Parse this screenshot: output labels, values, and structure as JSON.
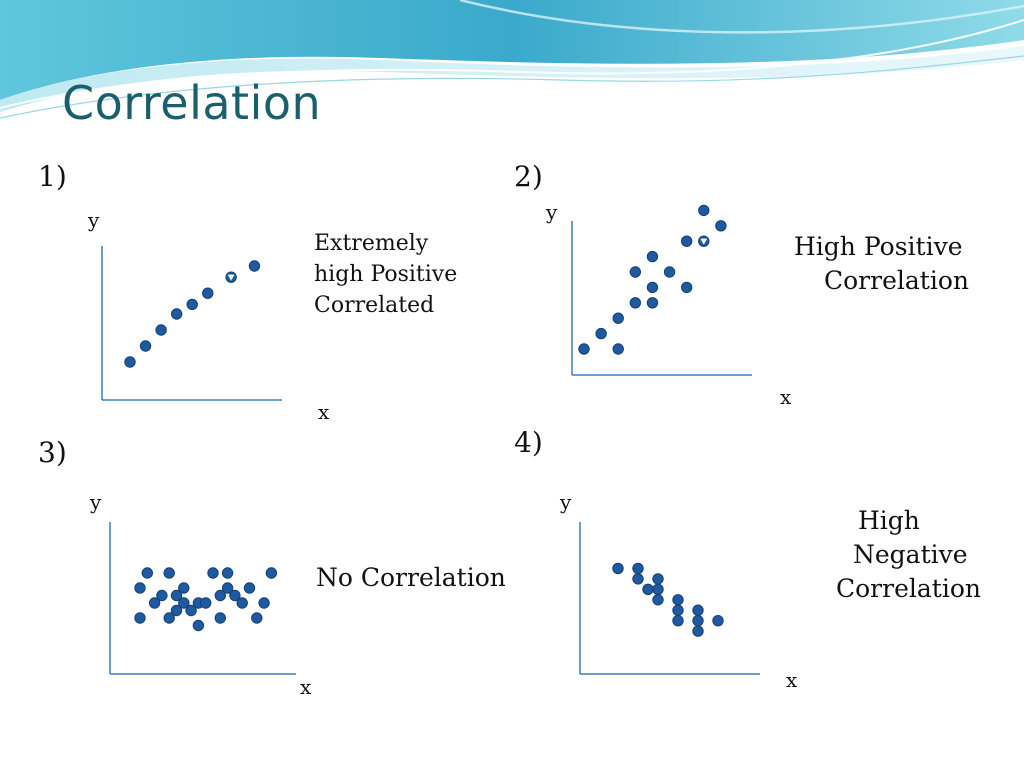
{
  "slide": {
    "title": "Correlation",
    "colors": {
      "title": "#1b5e6e",
      "dot": "#1f5aa0",
      "dot_dark": "#143f77",
      "axis": "#3d7db8"
    }
  },
  "panels": [
    {
      "number": "1)",
      "y_label": "y",
      "x_label": "x",
      "caption_lines": [
        "Extremely",
        "high Positive",
        "Correlated"
      ],
      "chart_data": {
        "type": "scatter",
        "title": "",
        "xlabel": "x",
        "ylabel": "y",
        "points": [
          [
            1,
            1
          ],
          [
            2,
            2
          ],
          [
            3,
            3
          ],
          [
            4,
            4
          ],
          [
            5,
            4.6
          ],
          [
            6,
            5.3
          ],
          [
            7.5,
            6.3
          ],
          [
            9,
            7
          ]
        ],
        "marker_points": [
          [
            7.5,
            6.3
          ]
        ]
      }
    },
    {
      "number": "2)",
      "y_label": "y",
      "x_label": "x",
      "caption_lines": [
        "High Positive",
        "  Correlation"
      ],
      "chart_data": {
        "type": "scatter",
        "title": "",
        "xlabel": "x",
        "ylabel": "y",
        "points": [
          [
            1,
            1
          ],
          [
            2,
            2
          ],
          [
            3,
            1
          ],
          [
            3,
            3
          ],
          [
            4,
            4
          ],
          [
            4,
            6
          ],
          [
            5,
            4
          ],
          [
            5,
            5
          ],
          [
            5,
            7
          ],
          [
            6,
            6
          ],
          [
            7,
            5
          ],
          [
            7,
            8
          ],
          [
            8,
            10
          ],
          [
            9,
            9
          ],
          [
            8,
            8
          ]
        ],
        "marker_points": [
          [
            8,
            8
          ]
        ]
      }
    },
    {
      "number": "3)",
      "y_label": "y",
      "x_label": "x",
      "caption_lines": [
        "No Correlation"
      ],
      "chart_data": {
        "type": "scatter",
        "title": "",
        "xlabel": "x",
        "ylabel": "y",
        "points": [
          [
            1,
            1
          ],
          [
            1,
            3
          ],
          [
            1.5,
            4
          ],
          [
            2,
            2
          ],
          [
            2.5,
            2.5
          ],
          [
            3,
            1
          ],
          [
            3,
            4
          ],
          [
            3.5,
            2.5
          ],
          [
            3.5,
            1.5
          ],
          [
            4,
            2
          ],
          [
            4,
            3
          ],
          [
            4.5,
            1.5
          ],
          [
            5,
            0.5
          ],
          [
            5,
            2
          ],
          [
            5.5,
            2
          ],
          [
            6,
            4
          ],
          [
            6.5,
            1
          ],
          [
            6.5,
            2.5
          ],
          [
            7,
            4
          ],
          [
            7,
            3
          ],
          [
            7.5,
            2.5
          ],
          [
            8,
            2
          ],
          [
            8.5,
            3
          ],
          [
            9,
            1
          ],
          [
            9.5,
            2
          ],
          [
            10,
            4
          ]
        ],
        "marker_points": []
      }
    },
    {
      "number": "4)",
      "y_label": "y",
      "x_label": "x",
      "caption_lines": [
        "High",
        "Negative",
        "Correlation"
      ],
      "chart_data": {
        "type": "scatter",
        "title": "",
        "xlabel": "x",
        "ylabel": "y",
        "points": [
          [
            1,
            9
          ],
          [
            2,
            9
          ],
          [
            2,
            8
          ],
          [
            3,
            8
          ],
          [
            2.5,
            7
          ],
          [
            3,
            7
          ],
          [
            3,
            6
          ],
          [
            4,
            6
          ],
          [
            4,
            5
          ],
          [
            5,
            5
          ],
          [
            4,
            4
          ],
          [
            5,
            4
          ],
          [
            6,
            4
          ],
          [
            5,
            3
          ]
        ],
        "marker_points": []
      }
    }
  ]
}
